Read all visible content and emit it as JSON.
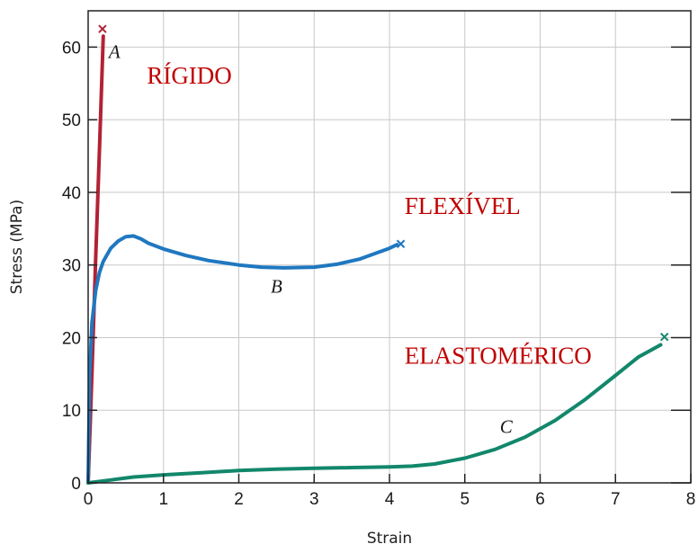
{
  "chart_data": {
    "type": "line",
    "xlabel": "Strain",
    "ylabel": "Stress (MPa)",
    "xlim": [
      0,
      8
    ],
    "ylim": [
      0,
      65
    ],
    "xticks": [
      0,
      1,
      2,
      3,
      4,
      5,
      6,
      7,
      8
    ],
    "yticks": [
      0,
      10,
      20,
      30,
      40,
      50,
      60
    ],
    "grid": true,
    "series": [
      {
        "name": "A",
        "color": "#b22234",
        "x": [
          0,
          0.05,
          0.1,
          0.15,
          0.2
        ],
        "y": [
          0,
          15,
          31,
          46,
          61.5
        ],
        "failure": [
          0.19,
          62.5
        ]
      },
      {
        "name": "B",
        "color": "#1f78c0",
        "x": [
          0,
          0.02,
          0.05,
          0.1,
          0.15,
          0.2,
          0.3,
          0.4,
          0.5,
          0.6,
          0.7,
          0.8,
          1.0,
          1.3,
          1.6,
          2.0,
          2.3,
          2.6,
          3.0,
          3.3,
          3.6,
          4.0,
          4.1
        ],
        "y": [
          0,
          15,
          22,
          26.5,
          29,
          30.5,
          32.3,
          33.3,
          33.9,
          34.0,
          33.6,
          33.0,
          32.2,
          31.3,
          30.6,
          30.0,
          29.7,
          29.6,
          29.7,
          30.1,
          30.8,
          32.3,
          32.8
        ],
        "failure": [
          4.15,
          32.9
        ]
      },
      {
        "name": "C",
        "color": "#12876b",
        "x": [
          0,
          0.3,
          0.6,
          1.0,
          1.5,
          2.0,
          2.5,
          3.0,
          3.5,
          4.0,
          4.3,
          4.6,
          5.0,
          5.4,
          5.8,
          6.2,
          6.6,
          7.0,
          7.3,
          7.6
        ],
        "y": [
          0,
          0.4,
          0.8,
          1.1,
          1.4,
          1.7,
          1.9,
          2.0,
          2.1,
          2.2,
          2.3,
          2.6,
          3.4,
          4.6,
          6.3,
          8.6,
          11.5,
          14.8,
          17.3,
          19.0
        ],
        "failure": [
          7.65,
          20.1
        ]
      }
    ],
    "curve_labels": [
      {
        "text": "A",
        "x": 0.35,
        "y": 58.5
      },
      {
        "text": "B",
        "x": 2.5,
        "y": 26.2
      },
      {
        "text": "C",
        "x": 5.55,
        "y": 6.9
      }
    ],
    "annotations": [
      {
        "text": "RÍGIDO",
        "x": 0.78,
        "y": 55.0,
        "color": "#c00000"
      },
      {
        "text": "FLEXÍVEL",
        "x": 4.2,
        "y": 37.0,
        "color": "#c00000"
      },
      {
        "text": "ELASTOMÉRICO",
        "x": 4.2,
        "y": 16.4,
        "color": "#c00000"
      }
    ]
  }
}
